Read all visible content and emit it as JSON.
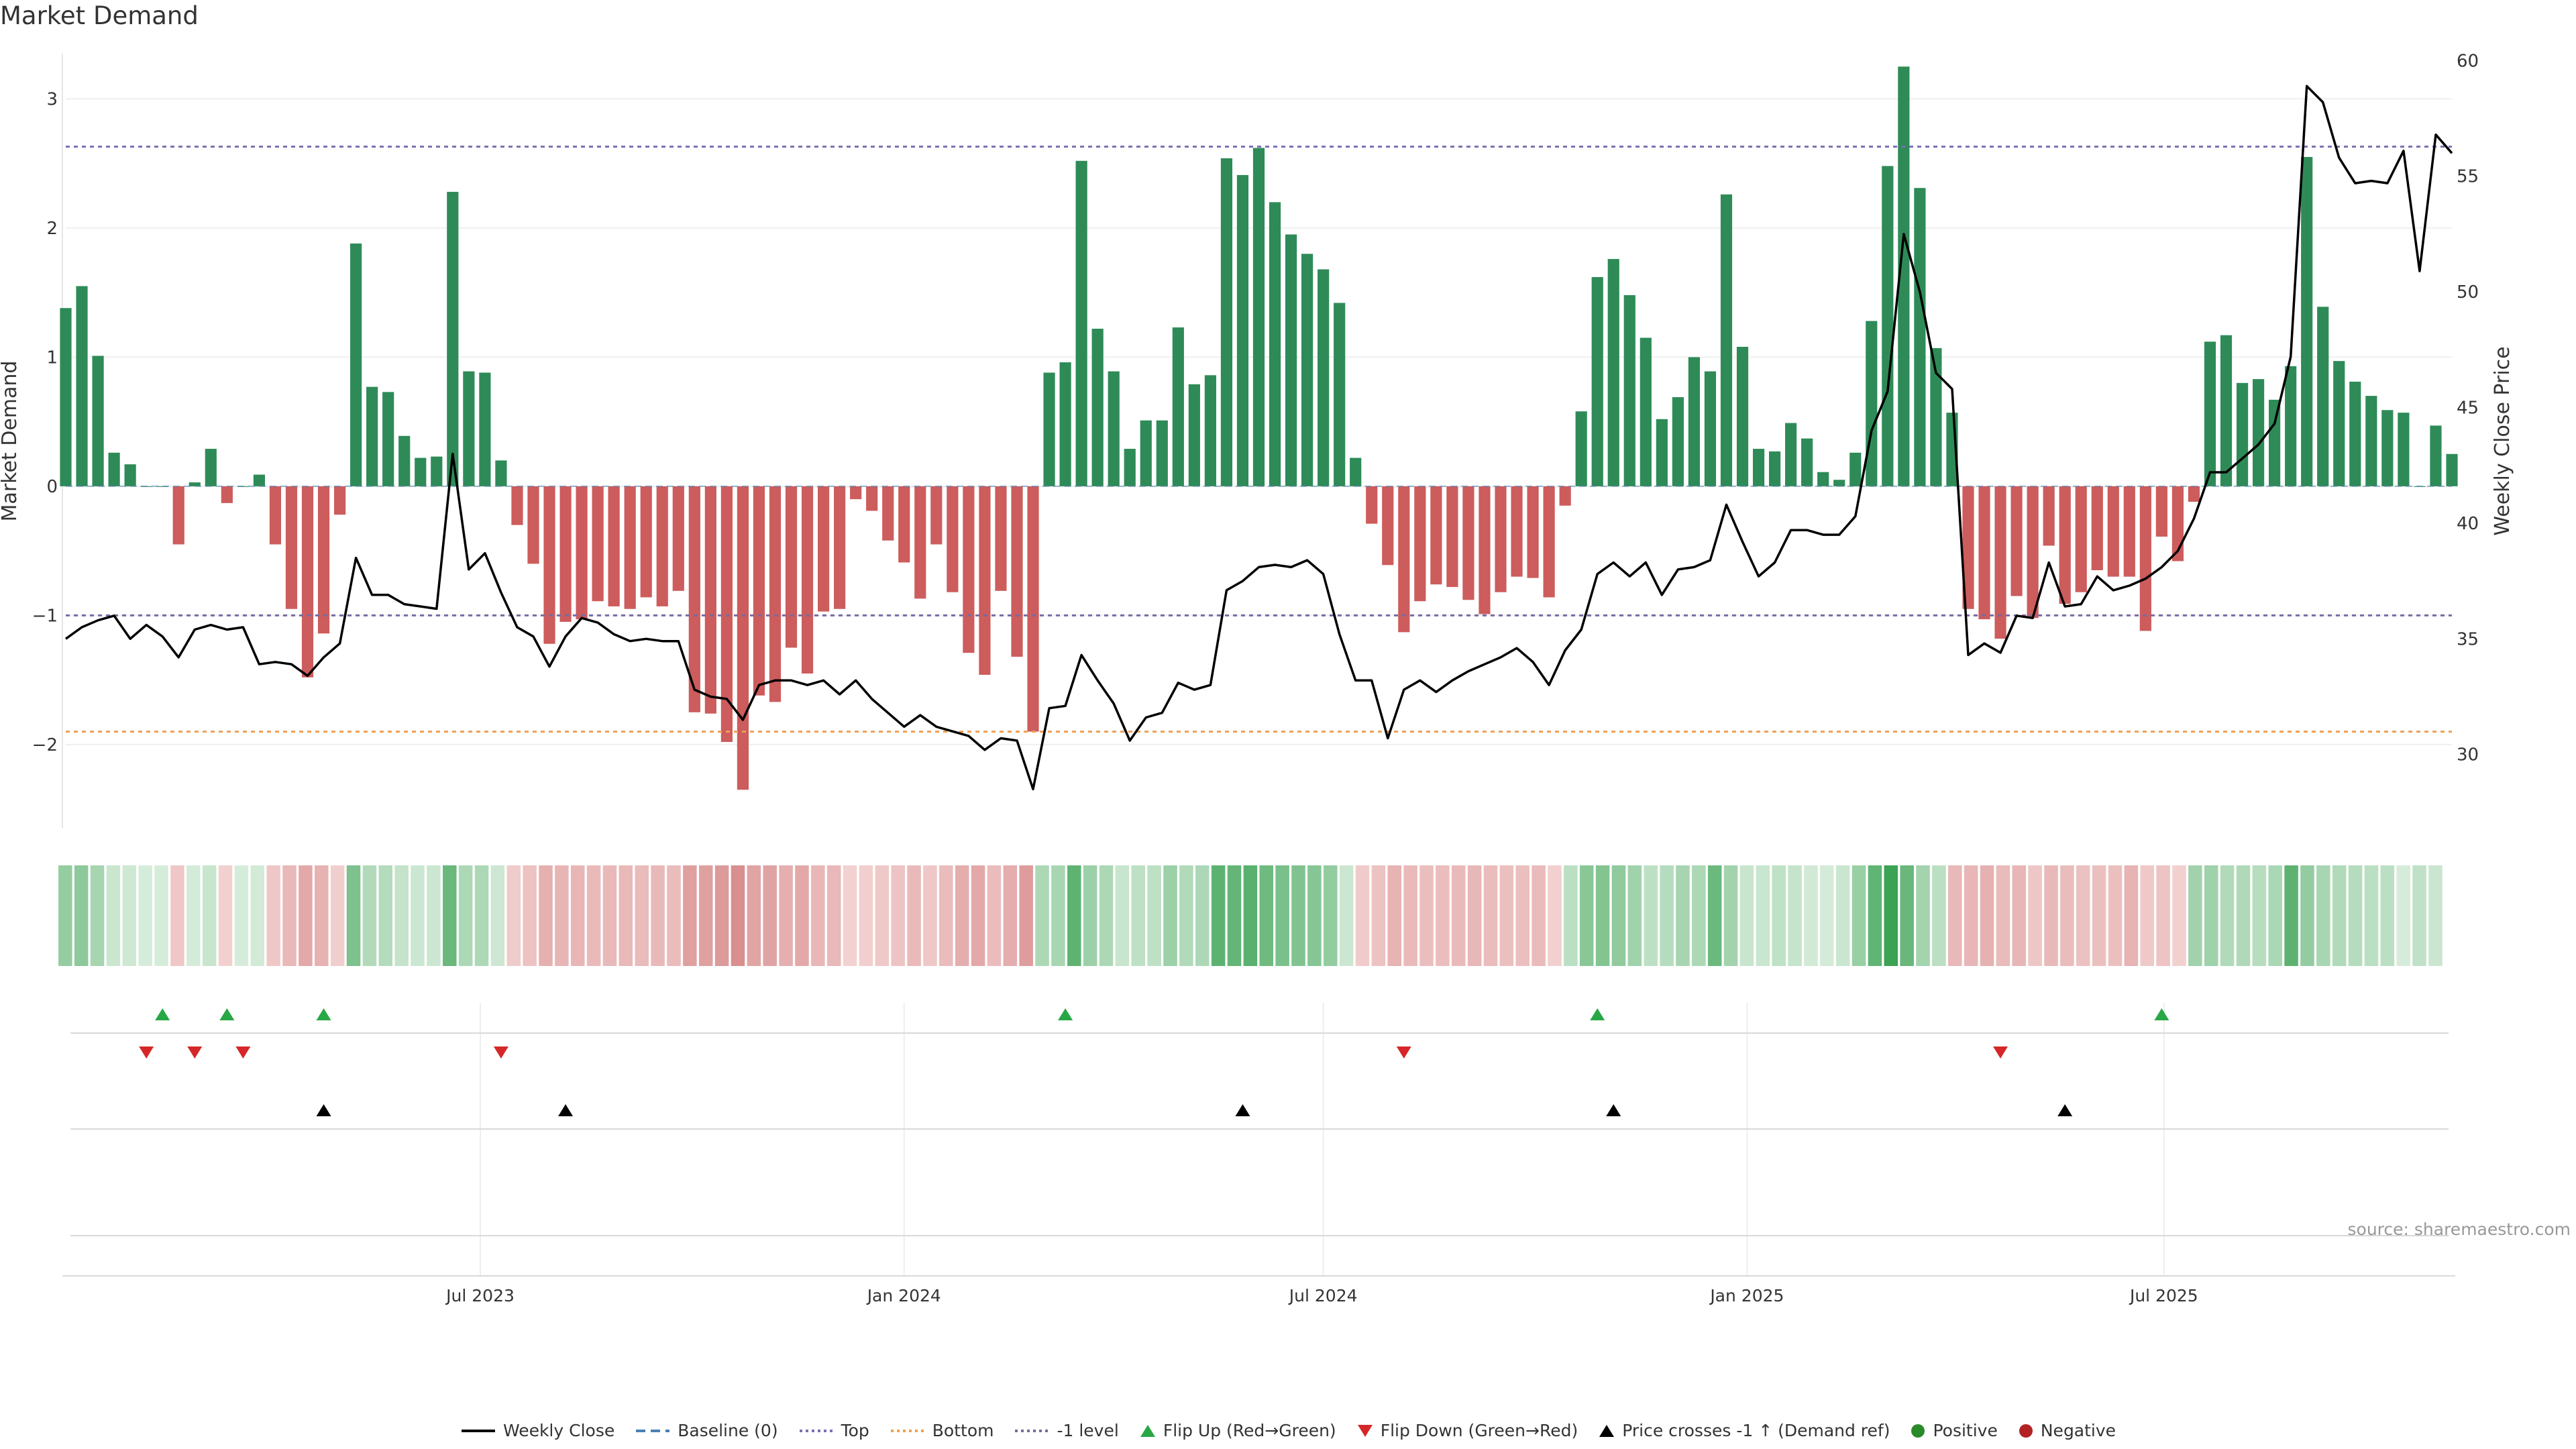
{
  "title": "Market Demand",
  "source": "source: sharemaestro.com",
  "colors": {
    "positive": "#2e8b57",
    "negative": "#cd5c5c",
    "price_line": "#000000",
    "top_line": "#7b6fb0",
    "bottom_line": "#f0a050",
    "minus1_line": "#7a6aa0",
    "flip_up": "#28a745",
    "flip_down": "#d62728",
    "cross_marker": "#000000"
  },
  "chart_data": {
    "type": "bar",
    "title": "Market Demand",
    "ylabel": "Market Demand",
    "y2label": "Weekly Close Price",
    "ylim": [
      -2.65,
      3.35
    ],
    "y2lim": [
      26.8,
      60.3
    ],
    "yticks": [
      -2,
      -1,
      0,
      1,
      2,
      3
    ],
    "y2ticks": [
      30,
      35,
      40,
      45,
      50,
      55,
      60
    ],
    "reference_lines": {
      "top": 2.63,
      "bottom": -1.9,
      "minus1": -1.0,
      "baseline": 0
    },
    "x_date_range": [
      "2023-01-02",
      "2025-10-06"
    ],
    "xticks": [
      {
        "date": "2023-07-01",
        "label": "Jul 2023"
      },
      {
        "date": "2024-01-01",
        "label": "Jan 2024"
      },
      {
        "date": "2024-07-01",
        "label": "Jul 2024"
      },
      {
        "date": "2025-01-01",
        "label": "Jan 2025"
      },
      {
        "date": "2025-07-01",
        "label": "Jul 2025"
      }
    ],
    "series": [
      {
        "name": "Market Demand (weekly)",
        "start": "2023-01-02",
        "interval_days": 7,
        "values": [
          1.38,
          1.55,
          1.01,
          0.26,
          0.17,
          0.0,
          0.0,
          -0.45,
          0.03,
          0.29,
          -0.13,
          0.0,
          0.09,
          -0.45,
          -0.95,
          -1.48,
          -1.14,
          -0.22,
          1.88,
          0.77,
          0.73,
          0.39,
          0.22,
          0.23,
          2.28,
          0.89,
          0.88,
          0.2,
          -0.3,
          -0.6,
          -1.22,
          -1.05,
          -1.03,
          -0.89,
          -0.93,
          -0.95,
          -0.86,
          -0.93,
          -0.81,
          -1.75,
          -1.76,
          -1.98,
          -2.35,
          -1.62,
          -1.67,
          -1.25,
          -1.45,
          -0.97,
          -0.95,
          -0.1,
          -0.19,
          -0.42,
          -0.59,
          -0.87,
          -0.45,
          -0.82,
          -1.29,
          -1.46,
          -0.81,
          -1.32,
          -1.9,
          0.88,
          0.96,
          2.52,
          1.22,
          0.89,
          0.29,
          0.51,
          0.51,
          1.23,
          0.79,
          0.86,
          2.54,
          2.41,
          2.62,
          2.2,
          1.95,
          1.8,
          1.68,
          1.42,
          0.22,
          -0.29,
          -0.61,
          -1.13,
          -0.89,
          -0.76,
          -0.78,
          -0.88,
          -0.99,
          -0.82,
          -0.7,
          -0.71,
          -0.86,
          -0.15,
          0.58,
          1.62,
          1.76,
          1.48,
          1.15,
          0.52,
          0.69,
          1.0,
          0.89,
          2.26,
          1.08,
          0.29,
          0.27,
          0.49,
          0.37,
          0.11,
          0.05,
          0.26,
          1.28,
          2.48,
          3.25,
          2.31,
          1.07,
          0.57,
          -0.95,
          -1.03,
          -1.18,
          -0.85,
          -1.02,
          -0.46,
          -0.91,
          -0.82,
          -0.65,
          -0.7,
          -0.7,
          -1.12,
          -0.39,
          -0.58,
          -0.12,
          1.12,
          1.17,
          0.8,
          0.83,
          0.67,
          0.93,
          2.55,
          1.39,
          0.97,
          0.81,
          0.7,
          0.59,
          0.57,
          0.0,
          0.47,
          0.25
        ]
      },
      {
        "name": "Weekly Close",
        "start": "2023-01-02",
        "interval_days": 7,
        "values": [
          35.0,
          35.5,
          35.8,
          36.0,
          35.0,
          35.6,
          35.1,
          34.2,
          35.4,
          35.6,
          35.4,
          35.5,
          33.9,
          34.0,
          33.9,
          33.4,
          34.2,
          34.8,
          38.5,
          36.9,
          36.9,
          36.5,
          36.4,
          36.3,
          43.0,
          38.0,
          38.7,
          37.0,
          35.5,
          35.1,
          33.8,
          35.1,
          35.9,
          35.7,
          35.2,
          34.9,
          35.0,
          34.9,
          34.9,
          32.8,
          32.5,
          32.4,
          31.5,
          33.0,
          33.2,
          33.2,
          33.0,
          33.2,
          32.6,
          33.2,
          32.4,
          31.8,
          31.2,
          31.7,
          31.2,
          31.0,
          30.8,
          30.2,
          30.7,
          30.6,
          28.5,
          32.0,
          32.1,
          34.3,
          33.2,
          32.2,
          30.6,
          31.6,
          31.8,
          33.1,
          32.8,
          33.0,
          37.1,
          37.5,
          38.1,
          38.2,
          38.1,
          38.4,
          37.8,
          35.2,
          33.2,
          33.2,
          30.7,
          32.8,
          33.2,
          32.7,
          33.2,
          33.6,
          33.9,
          34.2,
          34.6,
          34.0,
          33.0,
          34.5,
          35.4,
          37.8,
          38.3,
          37.7,
          38.3,
          36.9,
          38.0,
          38.1,
          38.4,
          40.8,
          39.2,
          37.7,
          38.3,
          39.7,
          39.7,
          39.5,
          39.5,
          40.3,
          44.0,
          45.7,
          52.5,
          50.0,
          46.5,
          45.8,
          34.3,
          34.8,
          34.4,
          36.0,
          35.9,
          38.3,
          36.4,
          36.5,
          37.7,
          37.1,
          37.3,
          37.6,
          38.1,
          38.8,
          40.2,
          42.2,
          42.2,
          42.8,
          43.4,
          44.3,
          47.2,
          58.9,
          58.2,
          55.8,
          54.7,
          54.8,
          54.7,
          56.1,
          50.9,
          56.8,
          56.0
        ]
      }
    ],
    "heat_strip": "Market Demand shaded by sign and magnitude",
    "markers": {
      "flip_up": [
        "2023-02-13",
        "2023-03-13",
        "2023-04-24",
        "2024-03-11",
        "2024-10-28",
        "2025-06-30"
      ],
      "flip_down": [
        "2023-02-06",
        "2023-02-27",
        "2023-03-20",
        "2023-07-10",
        "2024-08-05",
        "2025-04-21"
      ],
      "price_cross": [
        "2023-04-24",
        "2023-08-07",
        "2024-05-27",
        "2024-11-04",
        "2025-05-19"
      ]
    },
    "legend": [
      {
        "label": "Weekly Close",
        "marker": "line-solid"
      },
      {
        "label": "Baseline (0)",
        "marker": "line-dashed"
      },
      {
        "label": "Top",
        "marker": "line-dotted-purple"
      },
      {
        "label": "Bottom",
        "marker": "line-dotted-orange"
      },
      {
        "label": "-1 level",
        "marker": "line-dotted-gray"
      },
      {
        "label": "Flip Up (Red→Green)",
        "marker": "triangle-up-green"
      },
      {
        "label": "Flip Down (Green→Red)",
        "marker": "triangle-down-red"
      },
      {
        "label": "Price crosses -1 ↑ (Demand ref)",
        "marker": "triangle-up-black"
      },
      {
        "label": "Positive",
        "marker": "dot-green"
      },
      {
        "label": "Negative",
        "marker": "dot-red"
      }
    ]
  }
}
